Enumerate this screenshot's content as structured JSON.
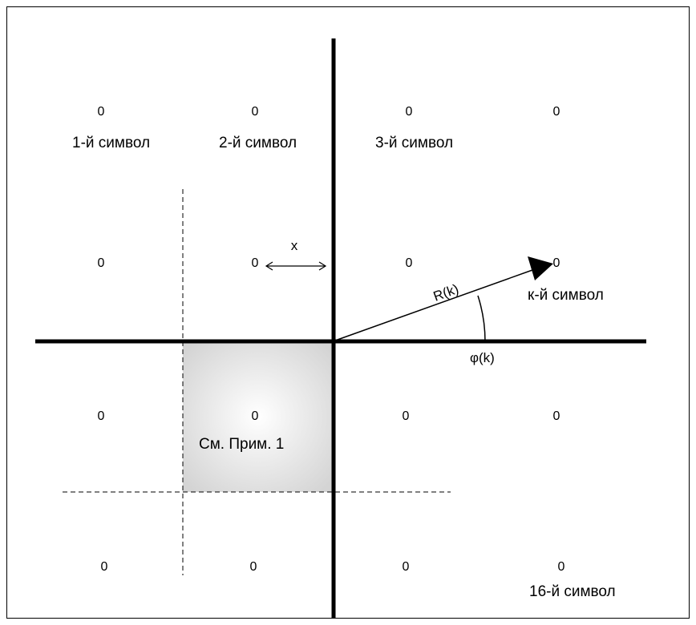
{
  "colors": {
    "line": "#000000",
    "shaded_region_center": "#ffffff",
    "shaded_region_edge": "#d4d4d4"
  },
  "points": [
    {
      "id": "p1",
      "glyph": "0"
    },
    {
      "id": "p2",
      "glyph": "0"
    },
    {
      "id": "p3",
      "glyph": "0"
    },
    {
      "id": "p4",
      "glyph": "0"
    },
    {
      "id": "p5",
      "glyph": "0"
    },
    {
      "id": "p6",
      "glyph": "0"
    },
    {
      "id": "p7",
      "glyph": "0"
    },
    {
      "id": "p8",
      "glyph": "0"
    },
    {
      "id": "p9",
      "glyph": "0"
    },
    {
      "id": "p10",
      "glyph": "0"
    },
    {
      "id": "p11",
      "glyph": "0"
    },
    {
      "id": "p12",
      "glyph": "0"
    },
    {
      "id": "p13",
      "glyph": "0"
    },
    {
      "id": "p14",
      "glyph": "0"
    },
    {
      "id": "p15",
      "glyph": "0"
    },
    {
      "id": "p16",
      "glyph": "0"
    }
  ],
  "labels": {
    "symbol_1": "1-й символ",
    "symbol_2": "2-й символ",
    "symbol_3": "3-й символ",
    "symbol_k": "к-й символ",
    "symbol_16": "16-й символ",
    "distance": "x",
    "magnitude": "R(k)",
    "phase": "φ(k)",
    "note": "См. Прим. 1"
  }
}
